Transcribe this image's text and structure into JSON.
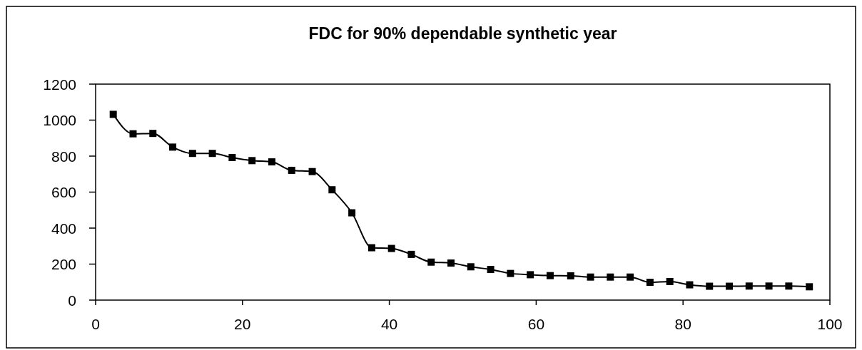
{
  "chart_data": {
    "type": "line",
    "title": "FDC for 90% dependable synthetic year",
    "x": [
      2.4,
      5.1,
      7.8,
      10.5,
      13.2,
      15.9,
      18.6,
      21.3,
      24.0,
      26.7,
      29.5,
      32.2,
      34.9,
      37.6,
      40.3,
      43.0,
      45.7,
      48.4,
      51.1,
      53.8,
      56.5,
      59.2,
      61.9,
      64.7,
      67.4,
      70.1,
      72.8,
      75.5,
      78.2,
      80.9,
      83.6,
      86.3,
      89.0,
      91.7,
      94.4,
      97.2
    ],
    "series": [
      {
        "color": "#000000",
        "values": [
          1032,
          924,
          926,
          850,
          815,
          815,
          792,
          775,
          768,
          721,
          714,
          613,
          485,
          291,
          287,
          254,
          211,
          206,
          185,
          170,
          148,
          141,
          136,
          135,
          128,
          128,
          128,
          99,
          103,
          85,
          77,
          77,
          78,
          78,
          78,
          74
        ]
      }
    ],
    "xlim": [
      0,
      100
    ],
    "xticks": [
      0,
      20,
      40,
      60,
      80,
      100
    ],
    "ylim": [
      0,
      1200
    ],
    "yticks": [
      0,
      200,
      400,
      600,
      800,
      1000,
      1200
    ],
    "grid": false,
    "marker": "square",
    "line_style": "solid"
  }
}
